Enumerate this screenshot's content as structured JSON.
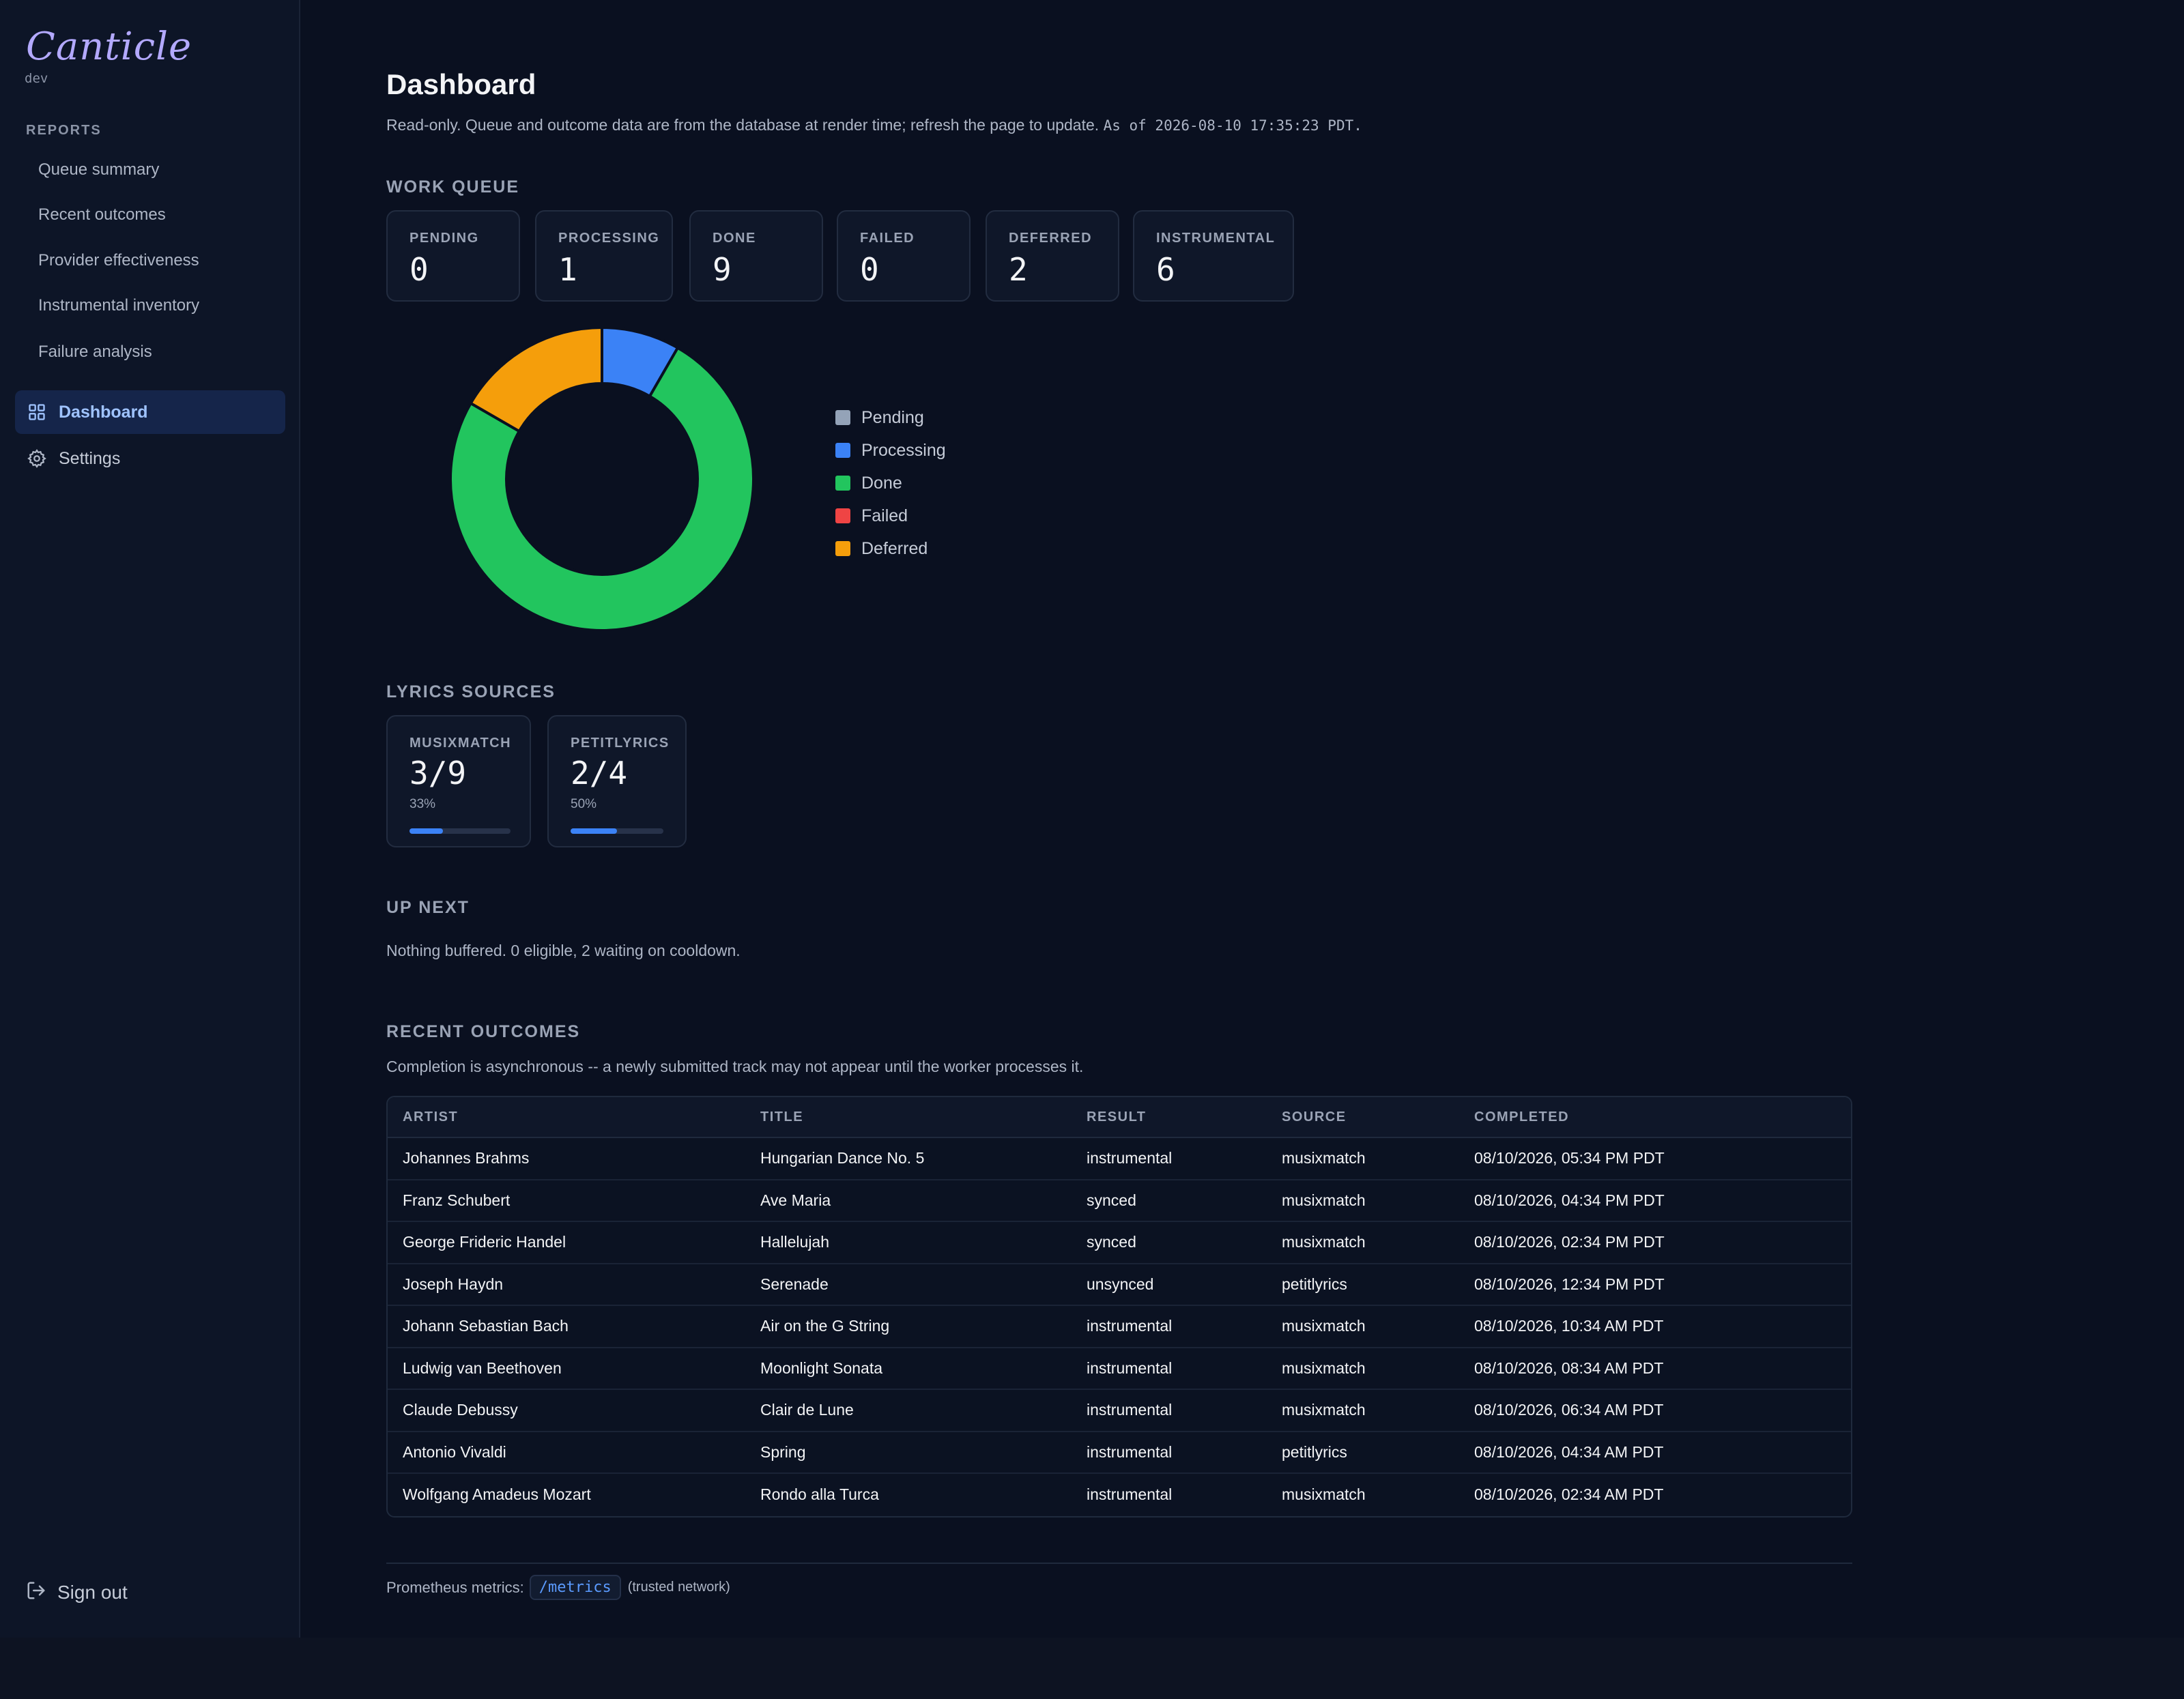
{
  "sidebar": {
    "logo": "Canticle",
    "env": "dev",
    "reports_label": "REPORTS",
    "reports": [
      "Queue summary",
      "Recent outcomes",
      "Provider effectiveness",
      "Instrumental inventory",
      "Failure analysis"
    ],
    "nav": [
      {
        "label": "Dashboard",
        "icon": "grid-icon",
        "active": true
      },
      {
        "label": "Settings",
        "icon": "gear-icon",
        "active": false
      }
    ],
    "signout": "Sign out"
  },
  "header": {
    "title": "Dashboard",
    "subtitle": "Read-only. Queue and outcome data are from the database at render time; refresh the page to update.",
    "as_of": "As of 2026-08-10 17:35:23 PDT."
  },
  "work_queue": {
    "heading": "WORK QUEUE",
    "stats": [
      {
        "label": "PENDING",
        "value": "0"
      },
      {
        "label": "PROCESSING",
        "value": "1"
      },
      {
        "label": "DONE",
        "value": "9"
      },
      {
        "label": "FAILED",
        "value": "0"
      },
      {
        "label": "DEFERRED",
        "value": "2"
      },
      {
        "label": "INSTRUMENTAL",
        "value": "6"
      }
    ]
  },
  "chart_data": {
    "type": "pie",
    "categories": [
      "Pending",
      "Processing",
      "Done",
      "Failed",
      "Deferred"
    ],
    "values": [
      0,
      1,
      9,
      0,
      2
    ],
    "colors": [
      "#94a3b8",
      "#3b82f6",
      "#22c55e",
      "#ef4444",
      "#f59e0b"
    ],
    "legend": "right"
  },
  "lyrics_sources": {
    "heading": "LYRICS SOURCES",
    "sources": [
      {
        "label": "MUSIXMATCH",
        "value": "3/9",
        "pct": "33%",
        "fraction": 0.33
      },
      {
        "label": "PETITLYRICS",
        "value": "2/4",
        "pct": "50%",
        "fraction": 0.5
      }
    ]
  },
  "up_next": {
    "heading": "UP NEXT",
    "text": "Nothing buffered. 0 eligible, 2 waiting on cooldown."
  },
  "recent_outcomes": {
    "heading": "RECENT OUTCOMES",
    "note": "Completion is asynchronous -- a newly submitted track may not appear until the worker processes it.",
    "columns": [
      "ARTIST",
      "TITLE",
      "RESULT",
      "SOURCE",
      "COMPLETED"
    ],
    "rows": [
      [
        "Johannes Brahms",
        "Hungarian Dance No. 5",
        "instrumental",
        "musixmatch",
        "08/10/2026, 05:34 PM PDT"
      ],
      [
        "Franz Schubert",
        "Ave Maria",
        "synced",
        "musixmatch",
        "08/10/2026, 04:34 PM PDT"
      ],
      [
        "George Frideric Handel",
        "Hallelujah",
        "synced",
        "musixmatch",
        "08/10/2026, 02:34 PM PDT"
      ],
      [
        "Joseph Haydn",
        "Serenade",
        "unsynced",
        "petitlyrics",
        "08/10/2026, 12:34 PM PDT"
      ],
      [
        "Johann Sebastian Bach",
        "Air on the G String",
        "instrumental",
        "musixmatch",
        "08/10/2026, 10:34 AM PDT"
      ],
      [
        "Ludwig van Beethoven",
        "Moonlight Sonata",
        "instrumental",
        "musixmatch",
        "08/10/2026, 08:34 AM PDT"
      ],
      [
        "Claude Debussy",
        "Clair de Lune",
        "instrumental",
        "musixmatch",
        "08/10/2026, 06:34 AM PDT"
      ],
      [
        "Antonio Vivaldi",
        "Spring",
        "instrumental",
        "petitlyrics",
        "08/10/2026, 04:34 AM PDT"
      ],
      [
        "Wolfgang Amadeus Mozart",
        "Rondo alla Turca",
        "instrumental",
        "musixmatch",
        "08/10/2026, 02:34 AM PDT"
      ]
    ]
  },
  "footer": {
    "prefix": "Prometheus metrics:",
    "link": "/metrics",
    "suffix": "(trusted network)"
  }
}
